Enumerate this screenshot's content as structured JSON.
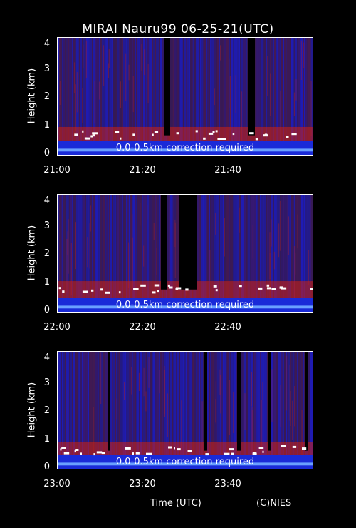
{
  "title": "MIRAI Nauru99 06-25-21(UTC)",
  "xlabel": "Time (UTC)",
  "credit": "(C)NIES",
  "colors": {
    "background": "#000000",
    "signal_low": "#1c1cc8",
    "signal_high": "#ff2a00",
    "cloud": "#ffffff"
  },
  "chart_data": [
    {
      "type": "heatmap",
      "ylabel": "Height (km)",
      "ylim": [
        0,
        4.2
      ],
      "yticks": [
        "0",
        "1",
        "2",
        "3",
        "4"
      ],
      "xticks": [
        "21:00",
        "21:20",
        "21:40"
      ],
      "xlim_minutes": [
        0,
        60
      ],
      "annotation": "0.0-0.5km correction required",
      "cloud_base_km": 0.75
    },
    {
      "type": "heatmap",
      "ylabel": "Height (km)",
      "ylim": [
        0,
        4.2
      ],
      "yticks": [
        "0",
        "1",
        "2",
        "3",
        "4"
      ],
      "xticks": [
        "22:00",
        "22:20",
        "22:40"
      ],
      "xlim_minutes": [
        0,
        60
      ],
      "annotation": "0.0-0.5km correction required",
      "cloud_base_km": 0.85
    },
    {
      "type": "heatmap",
      "ylabel": "Height (km)",
      "ylim": [
        0,
        4.2
      ],
      "yticks": [
        "0",
        "1",
        "2",
        "3",
        "4"
      ],
      "xticks": [
        "23:00",
        "23:20",
        "23:40"
      ],
      "xlim_minutes": [
        0,
        60
      ],
      "annotation": "0.0-0.5km correction required",
      "cloud_base_km": 0.7
    }
  ]
}
